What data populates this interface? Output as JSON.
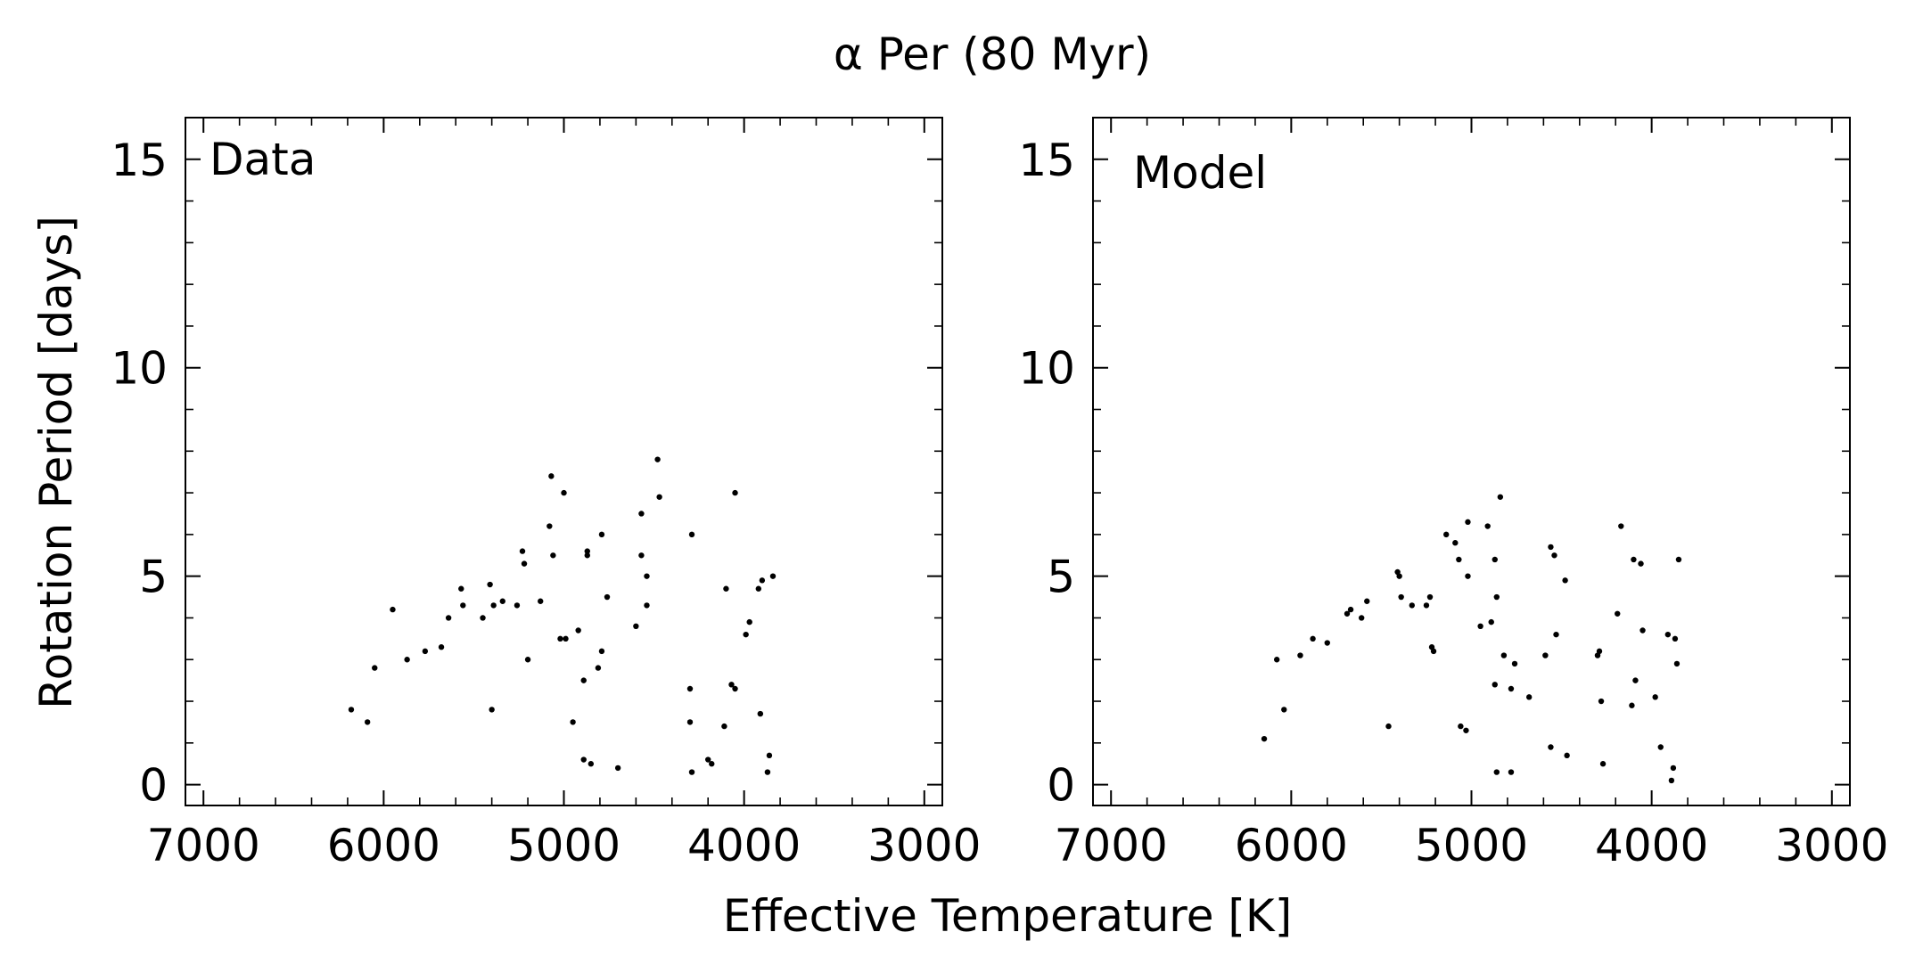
{
  "figure": {
    "title": "α Per (80 Myr)",
    "xlabel": "Effective Temperature [K]",
    "ylabel": "Rotation Period [days]"
  },
  "chart_data": [
    {
      "type": "scatter",
      "panel_label": "Data",
      "xlim": [
        7100,
        2900
      ],
      "ylim": [
        -0.5,
        16
      ],
      "x_ticks": [
        7000,
        6000,
        5000,
        4000,
        3000
      ],
      "y_ticks": [
        0,
        5,
        10,
        15
      ],
      "x_reversed": true,
      "marker_color": "#000000",
      "points": [
        [
          6180,
          1.8
        ],
        [
          6090,
          1.5
        ],
        [
          6050,
          2.8
        ],
        [
          5950,
          4.2
        ],
        [
          5870,
          3.0
        ],
        [
          5770,
          3.2
        ],
        [
          5680,
          3.3
        ],
        [
          5640,
          4.0
        ],
        [
          5570,
          4.7
        ],
        [
          5560,
          4.3
        ],
        [
          5450,
          4.0
        ],
        [
          5410,
          4.8
        ],
        [
          5400,
          1.8
        ],
        [
          5390,
          4.3
        ],
        [
          5340,
          4.4
        ],
        [
          5260,
          4.3
        ],
        [
          5230,
          5.6
        ],
        [
          5220,
          5.3
        ],
        [
          5200,
          3.0
        ],
        [
          5130,
          4.4
        ],
        [
          5080,
          6.2
        ],
        [
          5070,
          7.4
        ],
        [
          5060,
          5.5
        ],
        [
          5020,
          3.5
        ],
        [
          5000,
          7.0
        ],
        [
          4990,
          3.5
        ],
        [
          4950,
          1.5
        ],
        [
          4920,
          3.7
        ],
        [
          4890,
          2.5
        ],
        [
          4890,
          0.6
        ],
        [
          4870,
          5.5
        ],
        [
          4870,
          5.6
        ],
        [
          4850,
          0.5
        ],
        [
          4810,
          2.8
        ],
        [
          4790,
          6.0
        ],
        [
          4790,
          3.2
        ],
        [
          4760,
          4.5
        ],
        [
          4700,
          0.4
        ],
        [
          4600,
          3.8
        ],
        [
          4570,
          6.5
        ],
        [
          4570,
          5.5
        ],
        [
          4540,
          5.0
        ],
        [
          4540,
          4.3
        ],
        [
          4480,
          7.8
        ],
        [
          4470,
          6.9
        ],
        [
          4290,
          6.0
        ],
        [
          4300,
          2.3
        ],
        [
          4300,
          1.5
        ],
        [
          4290,
          0.3
        ],
        [
          4200,
          0.6
        ],
        [
          4180,
          0.5
        ],
        [
          4110,
          1.4
        ],
        [
          4100,
          4.7
        ],
        [
          4070,
          2.4
        ],
        [
          4050,
          2.3
        ],
        [
          4050,
          7.0
        ],
        [
          3990,
          3.6
        ],
        [
          3970,
          3.9
        ],
        [
          3920,
          4.7
        ],
        [
          3910,
          1.7
        ],
        [
          3900,
          4.9
        ],
        [
          3870,
          0.3
        ],
        [
          3860,
          0.7
        ],
        [
          3840,
          5.0
        ]
      ]
    },
    {
      "type": "scatter",
      "panel_label": "Model",
      "xlim": [
        7100,
        2900
      ],
      "ylim": [
        -0.5,
        16
      ],
      "x_ticks": [
        7000,
        6000,
        5000,
        4000,
        3000
      ],
      "y_ticks": [
        0,
        5,
        10,
        15
      ],
      "x_reversed": true,
      "marker_color": "#000000",
      "points": [
        [
          6150,
          1.1
        ],
        [
          6080,
          3.0
        ],
        [
          6040,
          1.8
        ],
        [
          5950,
          3.1
        ],
        [
          5880,
          3.5
        ],
        [
          5800,
          3.4
        ],
        [
          5690,
          4.1
        ],
        [
          5670,
          4.2
        ],
        [
          5610,
          4.0
        ],
        [
          5580,
          4.4
        ],
        [
          5460,
          1.4
        ],
        [
          5410,
          5.1
        ],
        [
          5400,
          5.0
        ],
        [
          5390,
          4.5
        ],
        [
          5330,
          4.3
        ],
        [
          5250,
          4.3
        ],
        [
          5230,
          4.5
        ],
        [
          5220,
          3.3
        ],
        [
          5210,
          3.2
        ],
        [
          5140,
          6.0
        ],
        [
          5090,
          5.8
        ],
        [
          5070,
          5.4
        ],
        [
          5060,
          1.4
        ],
        [
          5030,
          1.3
        ],
        [
          5020,
          5.0
        ],
        [
          5020,
          6.3
        ],
        [
          4950,
          3.8
        ],
        [
          4910,
          6.2
        ],
        [
          4890,
          3.9
        ],
        [
          4870,
          2.4
        ],
        [
          4870,
          5.4
        ],
        [
          4860,
          4.5
        ],
        [
          4860,
          0.3
        ],
        [
          4840,
          6.9
        ],
        [
          4820,
          3.1
        ],
        [
          4780,
          0.3
        ],
        [
          4780,
          2.3
        ],
        [
          4760,
          2.9
        ],
        [
          4680,
          2.1
        ],
        [
          4590,
          3.1
        ],
        [
          4560,
          5.7
        ],
        [
          4560,
          0.9
        ],
        [
          4540,
          5.5
        ],
        [
          4530,
          3.6
        ],
        [
          4480,
          4.9
        ],
        [
          4470,
          0.7
        ],
        [
          4300,
          3.1
        ],
        [
          4290,
          3.2
        ],
        [
          4280,
          2.0
        ],
        [
          4270,
          0.5
        ],
        [
          4190,
          4.1
        ],
        [
          4170,
          6.2
        ],
        [
          4110,
          1.9
        ],
        [
          4100,
          5.4
        ],
        [
          4090,
          2.5
        ],
        [
          4060,
          5.3
        ],
        [
          4050,
          3.7
        ],
        [
          3980,
          2.1
        ],
        [
          3950,
          0.9
        ],
        [
          3910,
          3.6
        ],
        [
          3890,
          0.1
        ],
        [
          3880,
          0.4
        ],
        [
          3870,
          3.5
        ],
        [
          3860,
          2.9
        ],
        [
          3850,
          5.4
        ]
      ]
    }
  ]
}
